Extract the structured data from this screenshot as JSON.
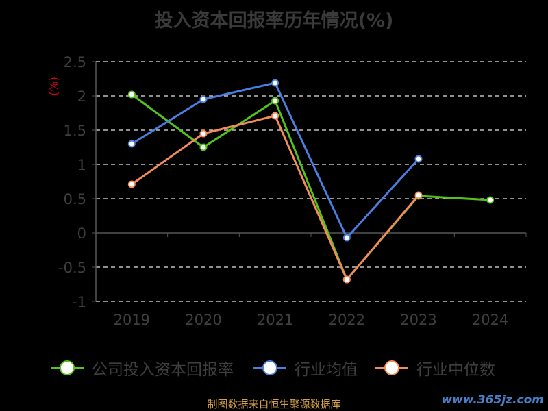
{
  "chart_data": {
    "type": "line",
    "title": "投入资本回报率历年情况(%)",
    "ylabel": "(%)",
    "categories": [
      "2019",
      "2020",
      "2021",
      "2022",
      "2023",
      "2024"
    ],
    "ylim": [
      -1,
      2.5
    ],
    "yticks": [
      "2.5",
      "2",
      "1.5",
      "1",
      "0.5",
      "0",
      "-0.5",
      "-1"
    ],
    "grid": true,
    "legend_position": "bottom",
    "series": [
      {
        "name": "公司投入资本回报率",
        "color": "#52c41a",
        "values": [
          2.02,
          1.25,
          1.93,
          -0.68,
          0.54,
          0.48
        ]
      },
      {
        "name": "行业均值",
        "color": "#4a7fe0",
        "values": [
          1.3,
          1.95,
          2.19,
          -0.07,
          1.08,
          null
        ]
      },
      {
        "name": "行业中位数",
        "color": "#f58a5a",
        "values": [
          0.71,
          1.45,
          1.71,
          -0.68,
          0.55,
          null
        ]
      }
    ]
  },
  "footer": {
    "source": "制图数据来自恒生聚源数据库",
    "watermark": "www.365jz.com"
  }
}
